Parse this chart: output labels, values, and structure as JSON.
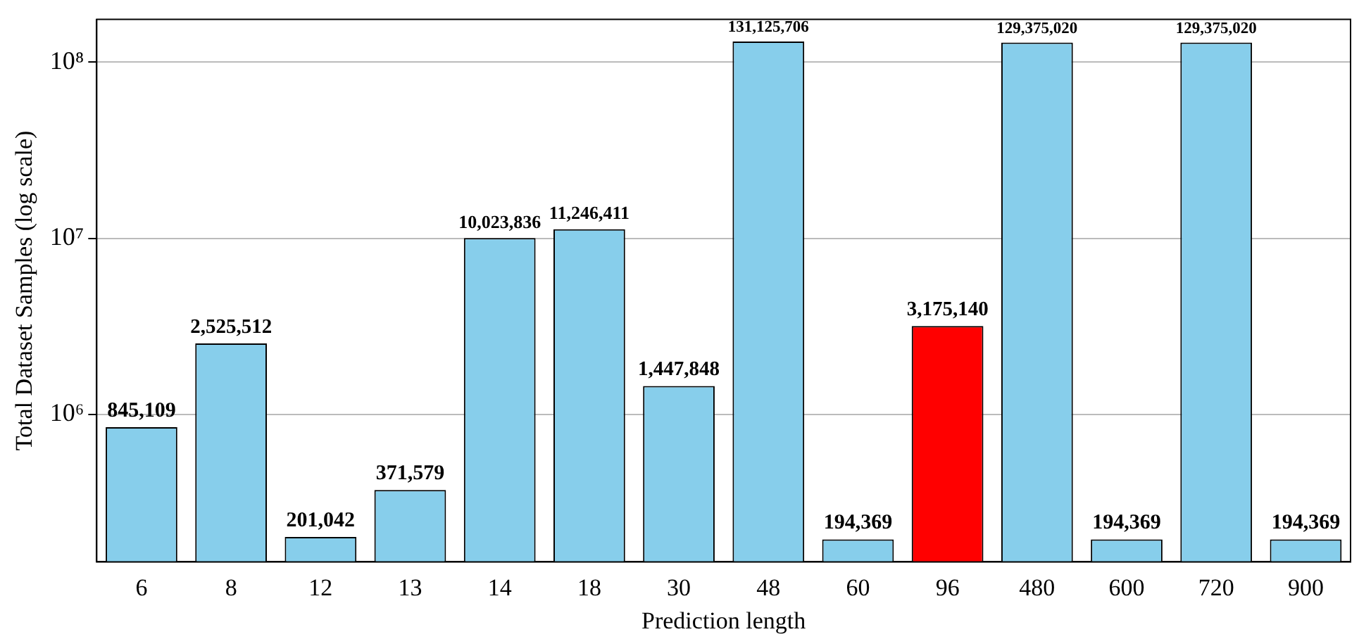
{
  "chart_data": {
    "type": "bar",
    "xlabel": "Prediction length",
    "ylabel": "Total Dataset Samples (log scale)",
    "categories": [
      "6",
      "8",
      "12",
      "13",
      "14",
      "18",
      "30",
      "48",
      "60",
      "96",
      "480",
      "600",
      "720",
      "900"
    ],
    "values": [
      845109,
      2525512,
      201042,
      371579,
      10023836,
      11246411,
      1447848,
      131125706,
      194369,
      3175140,
      129375020,
      194369,
      129375020,
      194369
    ],
    "colors": [
      "#87ceeb",
      "#87ceeb",
      "#87ceeb",
      "#87ceeb",
      "#87ceeb",
      "#87ceeb",
      "#87ceeb",
      "#87ceeb",
      "#87ceeb",
      "#ff0000",
      "#87ceeb",
      "#87ceeb",
      "#87ceeb",
      "#87ceeb"
    ],
    "log": true,
    "ylim": [
      145000,
      175000000
    ],
    "yticks": [
      {
        "value": 1000000,
        "label": "10⁶"
      },
      {
        "value": 10000000,
        "label": "10⁷"
      },
      {
        "value": 100000000,
        "label": "10⁸"
      }
    ],
    "value_labels": [
      "845,109",
      "2,525,512",
      "201,042",
      "371,579",
      "10,023,836",
      "11,246,411",
      "1,447,848",
      "131,125,706",
      "194,369",
      "3,175,140",
      "129,375,020",
      "194,369",
      "129,375,020",
      "194,369"
    ],
    "grid": "y"
  }
}
